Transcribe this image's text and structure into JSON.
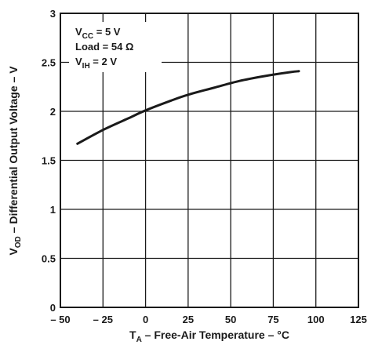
{
  "chart_data": {
    "type": "line",
    "xlabel": {
      "main": "T",
      "sub": "A",
      "rest": " – Free-Air Temperature – °C"
    },
    "ylabel": {
      "main": "V",
      "sub": "OD",
      "rest": " – Differential Output Voltage – V"
    },
    "xlim": [
      -50,
      125
    ],
    "ylim": [
      0,
      3
    ],
    "xticks": [
      -50,
      -25,
      0,
      25,
      50,
      75,
      100,
      125
    ],
    "xtick_labels": [
      "– 50",
      "– 25",
      "0",
      "25",
      "50",
      "75",
      "100",
      "125"
    ],
    "yticks": [
      0,
      0.5,
      1,
      1.5,
      2,
      2.5,
      3
    ],
    "ytick_labels": [
      "0",
      "0.5",
      "1",
      "1.5",
      "2",
      "2.5",
      "3"
    ],
    "grid": true,
    "annotations": [
      {
        "main": "V",
        "sub": "CC",
        "rest": " = 5 V"
      },
      {
        "main": "Load = 54 Ω",
        "sub": "",
        "rest": ""
      },
      {
        "main": "V",
        "sub": "IH",
        "rest": " = 2 V"
      }
    ],
    "series": [
      {
        "x": [
          -40,
          -25,
          -10,
          0,
          15,
          25,
          40,
          55,
          70,
          85,
          90
        ],
        "y": [
          1.67,
          1.81,
          1.93,
          2.01,
          2.11,
          2.17,
          2.24,
          2.31,
          2.36,
          2.4,
          2.41
        ]
      }
    ]
  },
  "colors": {
    "line": "#1a1a1a",
    "grid": "#1a1a1a",
    "background": "#ffffff"
  }
}
